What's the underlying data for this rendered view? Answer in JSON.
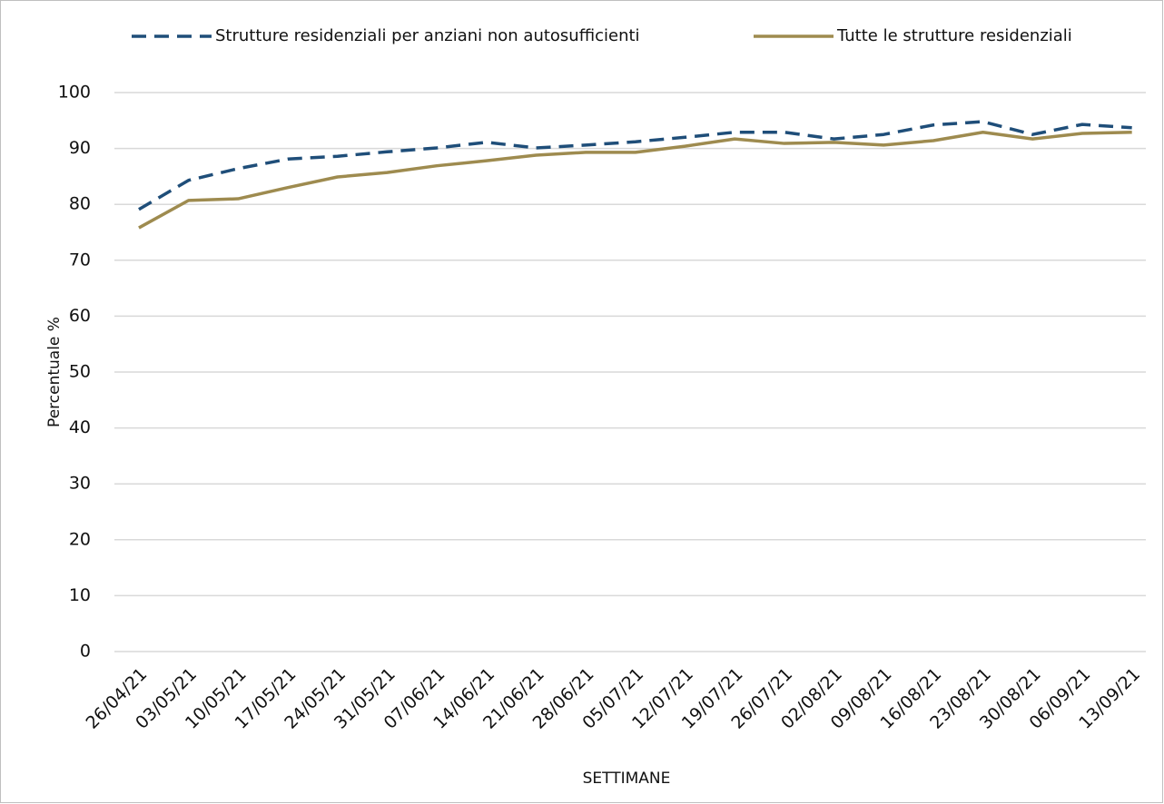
{
  "chart_data": {
    "type": "line",
    "x_label": "SETTIMANE",
    "y_label": "Percentuale %",
    "categories": [
      "26/04/21",
      "03/05/21",
      "10/05/21",
      "17/05/21",
      "24/05/21",
      "31/05/21",
      "07/06/21",
      "14/06/21",
      "21/06/21",
      "28/06/21",
      "05/07/21",
      "12/07/21",
      "19/07/21",
      "26/07/21",
      "02/08/21",
      "09/08/21",
      "16/08/21",
      "23/08/21",
      "30/08/21",
      "06/09/21",
      "13/09/21"
    ],
    "series": [
      {
        "name": "Strutture residenziali per anziani non autosufficienti",
        "color": "#1f4e79",
        "line_style": "dashed",
        "values": [
          79.1,
          84.3,
          86.4,
          88.1,
          88.6,
          89.4,
          90.1,
          91.1,
          90.1,
          90.6,
          91.2,
          92.0,
          92.9,
          92.9,
          91.7,
          92.5,
          94.2,
          94.8,
          92.5,
          94.3,
          93.7
        ]
      },
      {
        "name": "Tutte le strutture residenziali",
        "color": "#9e8b4f",
        "line_style": "solid",
        "values": [
          75.8,
          80.7,
          81.0,
          83.0,
          84.9,
          85.7,
          86.9,
          87.8,
          88.8,
          89.3,
          89.3,
          90.4,
          91.7,
          90.9,
          91.1,
          90.6,
          91.4,
          92.9,
          91.7,
          92.7,
          92.9
        ]
      }
    ],
    "ylim": [
      0,
      100
    ],
    "yticks": [
      0,
      10,
      20,
      30,
      40,
      50,
      60,
      70,
      80,
      90,
      100
    ],
    "grid": true,
    "legend": "top"
  }
}
